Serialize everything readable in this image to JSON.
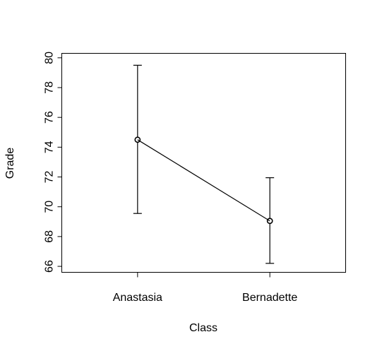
{
  "chart_data": {
    "type": "line",
    "title": "",
    "xlabel": "Class",
    "ylabel": "Grade",
    "categories": [
      "Anastasia",
      "Bernadette"
    ],
    "series": [
      {
        "values": [
          74.5,
          69.05
        ],
        "error_low": [
          69.55,
          66.2
        ],
        "error_high": [
          79.5,
          71.95
        ]
      }
    ],
    "ylim": [
      65.6,
      80.3
    ],
    "yticks": [
      66,
      68,
      70,
      72,
      74,
      76,
      78,
      80
    ],
    "grid": false,
    "marker": "open-circle",
    "error_bars": true
  }
}
